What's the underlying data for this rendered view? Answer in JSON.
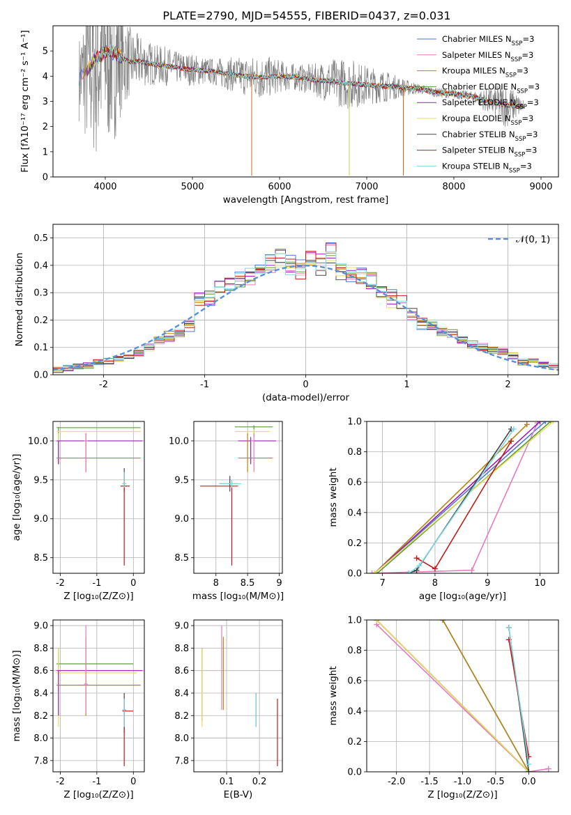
{
  "figure": {
    "title": "PLATE=2790, MJD=54555, FIBERID=0437, z=0.031"
  },
  "models": [
    {
      "name": "Chabrier MILES",
      "color": "#4e79d6"
    },
    {
      "name": "Salpeter MILES",
      "color": "#e57cbe"
    },
    {
      "name": "Kroupa MILES",
      "color": "#b5860b"
    },
    {
      "name": "Chabrier ELODIE",
      "color": "#5e9a3a"
    },
    {
      "name": "Salpeter ELODIE",
      "color": "#9a1fb5"
    },
    {
      "name": "Kroupa ELODIE",
      "color": "#e6e05a"
    },
    {
      "name": "Chabrier STELIB",
      "color": "#444444"
    },
    {
      "name": "Salpeter STELIB",
      "color": "#c01c1c"
    },
    {
      "name": "Kroupa STELIB",
      "color": "#7fd7e0"
    }
  ],
  "legend_suffix": "N",
  "legend_sub": "SSP",
  "legend_eq": "=3",
  "chart_data": [
    {
      "id": "spectrum",
      "type": "line",
      "xlabel": "wavelength [Angstrom, rest frame]",
      "ylabel": "Flux [fλ10⁻¹⁷ erg cm⁻² s⁻¹ A⁻¹]",
      "xlim": [
        3400,
        9200
      ],
      "ylim": [
        0,
        6
      ],
      "xticks": [
        4000,
        5000,
        6000,
        7000,
        8000,
        9000
      ],
      "yticks": [
        0,
        1,
        2,
        3,
        4,
        5
      ],
      "data_color": "#808080",
      "x": [
        3700,
        3800,
        3900,
        4000,
        4100,
        4200,
        4300,
        4400,
        4500,
        4600,
        4700,
        4800,
        4900,
        5000,
        5200,
        5400,
        5600,
        5800,
        6000,
        6200,
        6400,
        6600,
        6800,
        7000,
        7200,
        7400,
        7600,
        7800,
        8000,
        8200,
        8400,
        8600,
        8800
      ],
      "model": [
        3.9,
        4.3,
        4.7,
        5.0,
        4.95,
        4.7,
        4.55,
        4.6,
        4.5,
        4.45,
        4.4,
        4.35,
        4.3,
        4.25,
        4.2,
        4.1,
        4.0,
        3.95,
        4.0,
        3.95,
        3.85,
        3.8,
        3.7,
        3.65,
        3.6,
        3.55,
        3.5,
        3.35,
        3.3,
        3.2,
        3.0,
        2.85,
        2.8
      ],
      "noise": [
        1.3,
        2.5,
        3.2,
        3.0,
        2.8,
        1.5,
        1.0,
        0.8,
        0.7,
        0.6,
        0.6,
        0.5,
        0.5,
        0.5,
        0.4,
        0.5,
        0.6,
        0.7,
        0.5,
        0.4,
        0.5,
        0.7,
        0.8,
        0.6,
        0.5,
        0.3,
        0.15,
        0.15,
        0.15,
        0.15,
        0.4,
        0.7,
        0.2
      ]
    },
    {
      "id": "residuals",
      "type": "line",
      "xlabel": "(data-model)/error",
      "ylabel": "Normed distribution",
      "xlim": [
        -2.5,
        2.5
      ],
      "ylim": [
        0,
        0.55
      ],
      "xticks": [
        -2,
        -1,
        0,
        1,
        2
      ],
      "yticks": [
        0.0,
        0.1,
        0.2,
        0.3,
        0.4,
        0.5
      ],
      "legend": "𝒩(0, 1)",
      "gauss_color": "#5b8fd9",
      "bin_width": 0.1,
      "x": [
        -2.45,
        -2.35,
        -2.25,
        -2.15,
        -2.05,
        -1.95,
        -1.85,
        -1.75,
        -1.65,
        -1.55,
        -1.45,
        -1.35,
        -1.25,
        -1.15,
        -1.05,
        -0.95,
        -0.85,
        -0.75,
        -0.65,
        -0.55,
        -0.45,
        -0.35,
        -0.25,
        -0.15,
        -0.05,
        0.05,
        0.15,
        0.25,
        0.35,
        0.45,
        0.55,
        0.65,
        0.75,
        0.85,
        0.95,
        1.05,
        1.15,
        1.25,
        1.35,
        1.45,
        1.55,
        1.65,
        1.75,
        1.85,
        1.95,
        2.05,
        2.15,
        2.25,
        2.35,
        2.45
      ],
      "values": [
        0.02,
        0.025,
        0.03,
        0.035,
        0.045,
        0.05,
        0.06,
        0.065,
        0.08,
        0.1,
        0.13,
        0.14,
        0.15,
        0.18,
        0.27,
        0.28,
        0.32,
        0.33,
        0.35,
        0.36,
        0.38,
        0.41,
        0.43,
        0.4,
        0.38,
        0.42,
        0.41,
        0.44,
        0.38,
        0.37,
        0.36,
        0.35,
        0.3,
        0.28,
        0.26,
        0.22,
        0.19,
        0.18,
        0.16,
        0.15,
        0.13,
        0.11,
        0.1,
        0.09,
        0.08,
        0.07,
        0.05,
        0.05,
        0.04,
        0.03
      ]
    },
    {
      "id": "age-vs-Z",
      "type": "scatter",
      "xlabel": "Z [log₁₀(Z/Z⊙)]",
      "ylabel": "age  [log₁₀(age/yr)]",
      "xlim": [
        -2.2,
        0.3
      ],
      "ylim": [
        8.3,
        10.25
      ],
      "xticks": [
        -2,
        -1,
        0
      ],
      "yticks": [
        8.5,
        9.0,
        9.5,
        10.0
      ]
    },
    {
      "id": "age-vs-mass",
      "type": "scatter",
      "xlabel": "mass [log₁₀(M/M⊙)]",
      "ylabel": "",
      "xlim": [
        7.65,
        9.05
      ],
      "ylim": [
        8.3,
        10.25
      ],
      "xticks": [
        8.0,
        8.5,
        9.0
      ],
      "yticks": [
        8.5,
        9.0,
        9.5,
        10.0
      ]
    },
    {
      "id": "weight-vs-age",
      "type": "line",
      "xlabel": "age  [log₁₀(age/yr)]",
      "ylabel": "mass weight",
      "xlim": [
        6.7,
        10.35
      ],
      "ylim": [
        0,
        1
      ],
      "xticks": [
        7,
        8,
        9,
        10
      ],
      "yticks": [
        0.0,
        0.2,
        0.4,
        0.6,
        0.8,
        1.0
      ],
      "series": [
        {
          "x": [
            6.85,
            10.1
          ],
          "y": [
            0.0,
            1.0
          ]
        },
        {
          "x": [
            6.8,
            8.7,
            9.95
          ],
          "y": [
            0.0,
            0.02,
            0.99
          ]
        },
        {
          "x": [
            6.85,
            9.75
          ],
          "y": [
            0.0,
            0.98
          ]
        },
        {
          "x": [
            6.9,
            10.2
          ],
          "y": [
            0.0,
            1.0
          ]
        },
        {
          "x": [
            6.85,
            10.0
          ],
          "y": [
            0.0,
            1.0
          ]
        },
        {
          "x": [
            6.85,
            10.25
          ],
          "y": [
            0.0,
            1.0
          ]
        },
        {
          "x": [
            7.5,
            7.65,
            9.45
          ],
          "y": [
            0.0,
            0.02,
            0.95
          ]
        },
        {
          "x": [
            7.65,
            8.0,
            9.45
          ],
          "y": [
            0.1,
            0.03,
            0.87
          ]
        },
        {
          "x": [
            7.5,
            7.7,
            9.5
          ],
          "y": [
            0.0,
            0.05,
            0.95
          ]
        }
      ]
    },
    {
      "id": "mass-vs-Z",
      "type": "scatter",
      "xlabel": "Z [log₁₀(Z/Z⊙)]",
      "ylabel": "mass [log₁₀(M/M⊙)]",
      "xlim": [
        -2.2,
        0.3
      ],
      "ylim": [
        7.7,
        9.05
      ],
      "xticks": [
        -2,
        -1,
        0
      ],
      "yticks": [
        7.8,
        8.0,
        8.2,
        8.4,
        8.6,
        8.8,
        9.0
      ]
    },
    {
      "id": "mass-vs-ebv",
      "type": "scatter",
      "xlabel": "E(B-V)",
      "ylabel": "",
      "xlim": [
        0.0,
        0.27
      ],
      "ylim": [
        7.7,
        9.05
      ],
      "xticks": [
        0.1,
        0.2
      ],
      "yticks": [
        7.8,
        8.0,
        8.2,
        8.4,
        8.6,
        8.8,
        9.0
      ],
      "x": [
        0.025,
        0.025,
        0.085,
        0.09,
        0.19,
        0.19,
        0.255
      ],
      "ylow": [
        8.15,
        8.1,
        8.25,
        8.25,
        8.1,
        8.1,
        7.75
      ],
      "yhigh": [
        8.8,
        8.8,
        9.0,
        8.9,
        8.4,
        8.4,
        8.35
      ]
    },
    {
      "id": "weight-vs-Z",
      "type": "line",
      "xlabel": "Z [log₁₀(Z/Z⊙)]",
      "ylabel": "mass weight",
      "xlim": [
        -2.45,
        0.45
      ],
      "ylim": [
        0,
        1
      ],
      "xticks": [
        -2.0,
        -1.5,
        -1.0,
        -0.5,
        0.0
      ],
      "yticks": [
        0.0,
        0.2,
        0.4,
        0.6,
        0.8,
        1.0
      ],
      "series": [
        {
          "x": [
            -1.3,
            0.0
          ],
          "y": [
            1.0,
            0.0
          ]
        },
        {
          "x": [
            -2.3,
            0.0,
            0.3
          ],
          "y": [
            0.97,
            0.0,
            0.02
          ]
        },
        {
          "x": [
            -1.3,
            0.0
          ],
          "y": [
            1.0,
            0.0
          ]
        },
        {
          "x": [
            -2.3,
            0.0
          ],
          "y": [
            1.0,
            0.0
          ]
        },
        {
          "x": [
            -2.3,
            0.0
          ],
          "y": [
            1.0,
            0.0
          ]
        },
        {
          "x": [
            -2.3,
            0.0
          ],
          "y": [
            1.0,
            0.0
          ]
        },
        {
          "x": [
            -0.3,
            0.0
          ],
          "y": [
            0.95,
            0.0
          ]
        },
        {
          "x": [
            -0.3,
            0.0
          ],
          "y": [
            0.87,
            0.1
          ]
        },
        {
          "x": [
            -0.3,
            0.0
          ],
          "y": [
            0.95,
            0.05
          ]
        }
      ]
    }
  ]
}
